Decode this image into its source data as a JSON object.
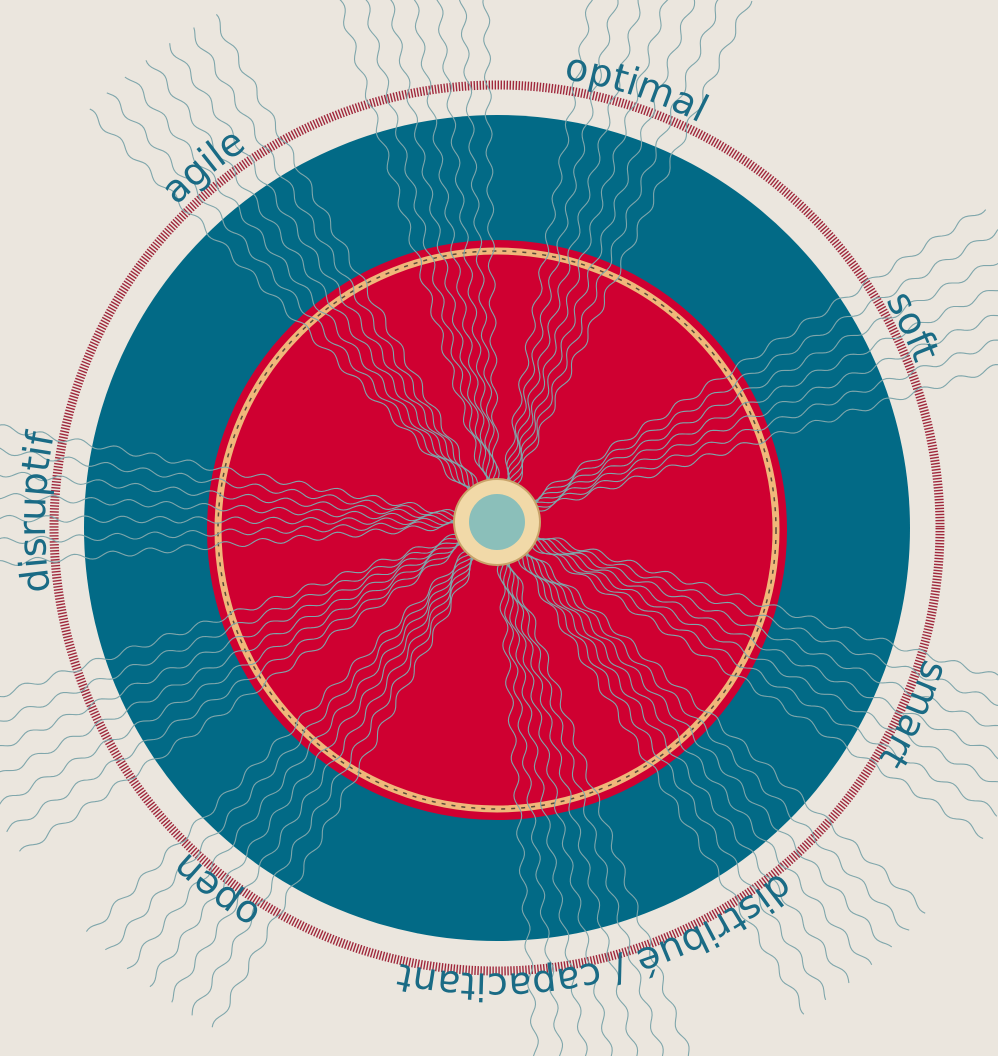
{
  "labels": [
    "optimal",
    "soft",
    "smart",
    "distribué / capacitant",
    "open",
    "disruptif",
    "agile"
  ]
}
